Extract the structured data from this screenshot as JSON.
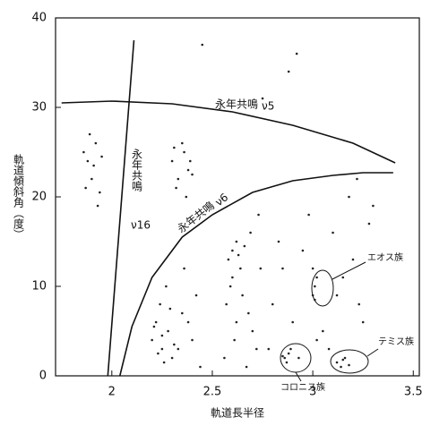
{
  "chart_data": {
    "type": "scatter",
    "x_label": "軌道長半径",
    "y_label": "軌道傾斜角（度）",
    "xlim": [
      1.72,
      3.53
    ],
    "ylim": [
      0,
      40
    ],
    "xticks": [
      2,
      2.5,
      3,
      3.5
    ],
    "yticks": [
      0,
      10,
      20,
      30,
      40
    ],
    "color": "#222222",
    "series": [
      {
        "x": [
          1.88,
          1.9,
          1.92,
          1.87,
          1.91,
          1.93,
          1.89,
          1.95,
          1.86,
          1.94,
          2.3,
          2.33,
          2.36,
          2.38,
          2.32,
          2.35,
          2.4,
          2.37,
          2.31,
          2.39,
          2.2,
          2.22,
          2.25,
          2.28,
          2.3,
          2.24,
          2.26,
          2.21,
          2.35,
          2.4,
          2.42,
          2.33,
          2.27,
          2.23,
          2.38,
          2.44,
          2.29,
          2.36,
          2.25,
          2.31,
          2.58,
          2.6,
          2.62,
          2.64,
          2.6,
          2.63,
          2.66,
          2.59,
          2.57,
          2.7,
          2.72,
          2.68,
          2.74,
          2.56,
          2.65,
          2.61,
          2.69,
          2.73,
          2.62,
          2.67,
          2.78,
          2.8,
          2.85,
          2.9,
          2.95,
          2.98,
          3.05,
          3.1,
          3.12,
          3.18,
          3.2,
          3.22,
          3.25,
          3.28,
          3.08,
          2.93,
          2.83,
          3.15,
          3.23,
          3.02,
          2.86,
          2.88,
          2.87,
          2.89,
          2.85,
          3.0,
          3.01,
          3.02,
          3.01,
          3.0,
          3.12,
          3.14,
          3.16,
          3.18,
          3.15,
          2.88,
          2.92,
          2.75,
          3.3,
          2.45
        ],
        "values": [
          24,
          22,
          26,
          21,
          23.5,
          19,
          27,
          24.5,
          25,
          20.5,
          24,
          22,
          25,
          23,
          21,
          26,
          22.5,
          20,
          25.5,
          24,
          4,
          6,
          3,
          5,
          2,
          8,
          1.5,
          5.5,
          7,
          4,
          9,
          3,
          10,
          2.5,
          6,
          1,
          7.5,
          12,
          4.5,
          3.5,
          13,
          14,
          15,
          12,
          11,
          13.5,
          14.5,
          10,
          8,
          5,
          3,
          7,
          12,
          2,
          9,
          4,
          16,
          18,
          6,
          1,
          3,
          8,
          12,
          6,
          14,
          18,
          5,
          16,
          9,
          20,
          13,
          22,
          6,
          17,
          3,
          2,
          15,
          11,
          8,
          4,
          2,
          2.5,
          1.5,
          3,
          2.2,
          9,
          10,
          11,
          8.5,
          12,
          1.5,
          1,
          2,
          1.2,
          1.8,
          34,
          36,
          31,
          19,
          37
        ]
      }
    ],
    "curves": [
      {
        "name": "永年共鳴",
        "symbol": "ν5",
        "x": [
          1.75,
          2.0,
          2.3,
          2.6,
          2.9,
          3.2,
          3.41
        ],
        "y": [
          30.5,
          30.7,
          30.4,
          29.5,
          28,
          26,
          23.8
        ]
      },
      {
        "name": "永年共鳴",
        "symbol": "ν6",
        "x": [
          2.04,
          2.1,
          2.2,
          2.35,
          2.5,
          2.7,
          2.9,
          3.1,
          3.25,
          3.4
        ],
        "y": [
          0,
          5.5,
          11,
          15.5,
          18,
          20.5,
          21.8,
          22.4,
          22.7,
          22.7
        ]
      },
      {
        "name": "永年共鳴",
        "symbol": "ν16",
        "x": [
          1.98,
          2.11
        ],
        "y": [
          0,
          37.5
        ]
      }
    ],
    "annotations": [
      "エオス族",
      "テミス族",
      "コロニス族"
    ]
  }
}
